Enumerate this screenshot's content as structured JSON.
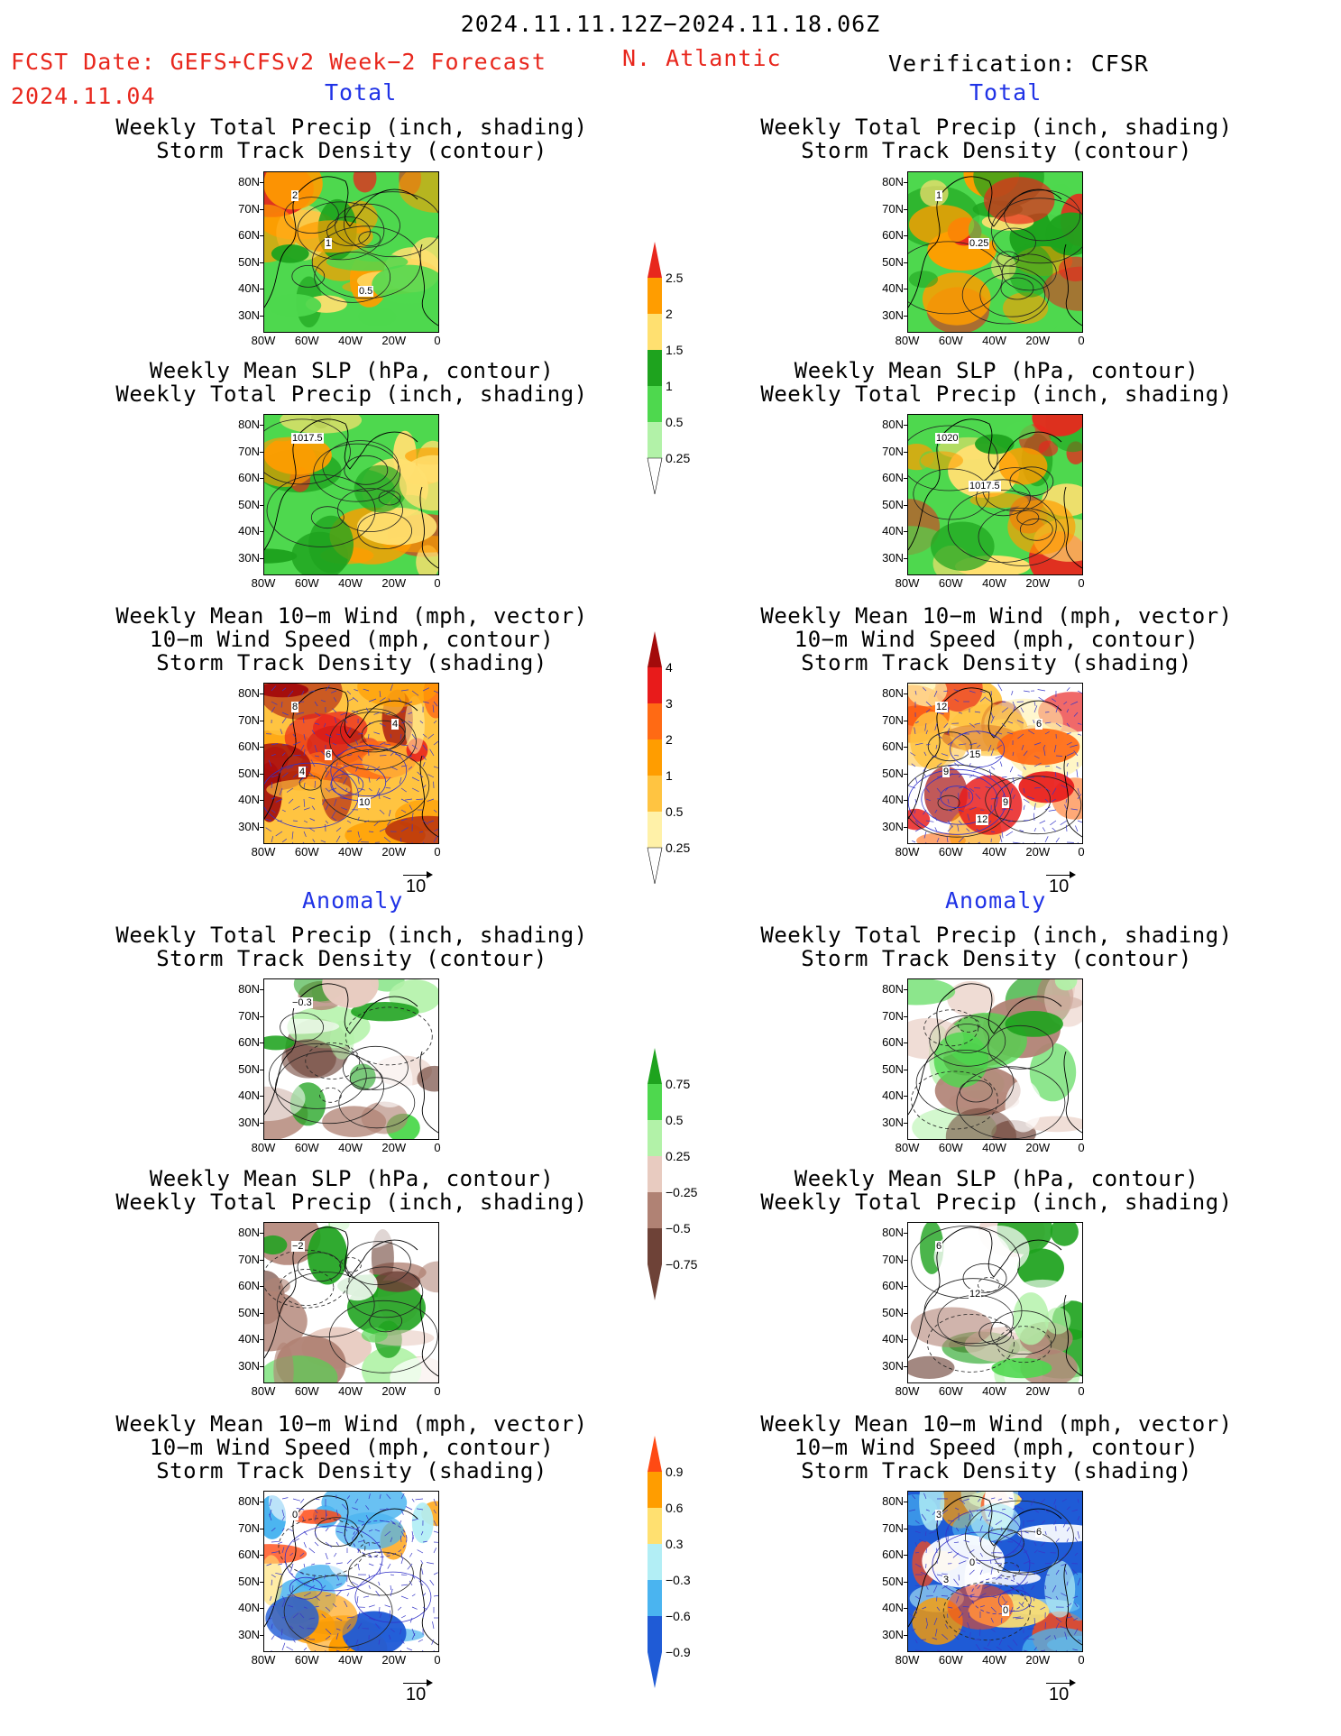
{
  "header": {
    "period": "2024.11.11.12Z−2024.11.18.06Z",
    "fcst_line1": "FCST Date: GEFS+CFSv2 Week−2 Forecast",
    "fcst_date": "2024.11.04",
    "region": "N. Atlantic",
    "verification": "Verification: CFSR"
  },
  "sections": {
    "total": "Total",
    "anomaly": "Anomaly"
  },
  "titles": {
    "precip_storm": [
      "Weekly Total Precip (inch, shading)",
      "Storm Track Density (contour)"
    ],
    "slp_precip": [
      "Weekly Mean SLP (hPa, contour)",
      "Weekly Total Precip (inch, shading)"
    ],
    "wind_storm": [
      "Weekly Mean 10−m Wind (mph, vector)",
      "10−m Wind Speed (mph, contour)",
      "Storm Track Density (shading)"
    ]
  },
  "axes": {
    "lat_labels": [
      "80N",
      "70N",
      "60N",
      "50N",
      "40N",
      "30N"
    ],
    "lon_labels": [
      "80W",
      "60W",
      "40W",
      "20W",
      "0"
    ]
  },
  "vector_ref": "10",
  "colorbars": {
    "total_precip": {
      "labels": [
        "2.5",
        "2",
        "1.5",
        "1",
        "0.5",
        "0.25"
      ],
      "colors": [
        "#e8271d",
        "#ff9d00",
        "#ffe070",
        "#1ea31e",
        "#4ed84e",
        "#b2f2a8"
      ]
    },
    "total_storm": {
      "labels": [
        "4",
        "3",
        "2",
        "1",
        "0.5",
        "0.25"
      ],
      "colors": [
        "#a30b0b",
        "#e81b1b",
        "#ff6a14",
        "#ff9d00",
        "#ffc441",
        "#fff1a8"
      ]
    },
    "anom_precip": {
      "labels": [
        "0.75",
        "0.5",
        "0.25",
        "−0.25",
        "−0.5",
        "−0.75"
      ],
      "colors": [
        "#1ea31e",
        "#4ed84e",
        "#b2f2a8",
        "#e8cbc0",
        "#b08274",
        "#6e4237"
      ]
    },
    "anom_storm": {
      "labels": [
        "0.9",
        "0.6",
        "0.3",
        "−0.3",
        "−0.6",
        "−0.9"
      ],
      "colors": [
        "#ff4a14",
        "#ff9d00",
        "#ffe070",
        "#b2eef5",
        "#4ab4f0",
        "#1f5bd6"
      ]
    }
  },
  "contour_labels": {
    "fc_total_precip": [
      "2",
      "1",
      "0.5"
    ],
    "vf_total_precip": [
      "1",
      "0.25"
    ],
    "fc_total_slp": [
      "1017.5"
    ],
    "vf_total_slp": [
      "1020",
      "1017.5"
    ],
    "fc_total_wind": [
      "8",
      "6",
      "10",
      "4",
      "4"
    ],
    "vf_total_wind": [
      "12",
      "15",
      "9",
      "6",
      "9",
      "12"
    ],
    "fc_anom_precip": [
      "−0.3"
    ],
    "fc_anom_slp": [
      "−2"
    ],
    "vf_anom_slp": [
      "6",
      "12"
    ],
    "fc_anom_wind": [
      "0"
    ],
    "vf_anom_wind": [
      "3",
      "0",
      "0",
      "6",
      "3"
    ]
  }
}
